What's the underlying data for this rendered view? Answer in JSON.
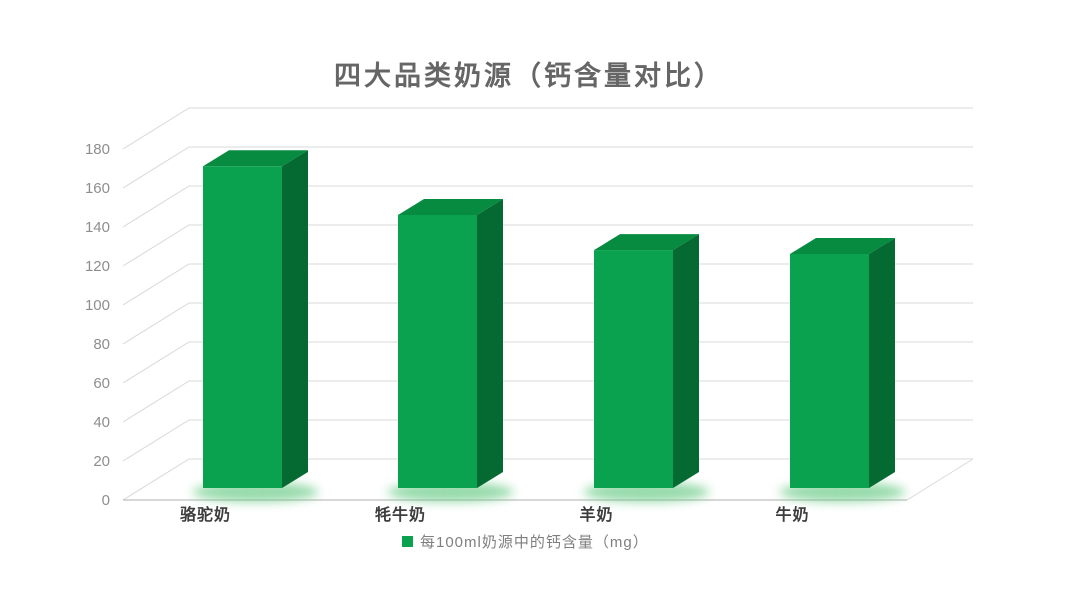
{
  "chart_data": {
    "type": "bar",
    "style": "3d-column",
    "title": "四大品类奶源（钙含量对比）",
    "categories": [
      "骆驼奶",
      "牦牛奶",
      "羊奶",
      "牛奶"
    ],
    "series": [
      {
        "name": "每100ml奶源中的钙含量（mg）",
        "values": [
          165,
          140,
          122,
          120
        ]
      }
    ],
    "xlabel": "",
    "ylabel": "",
    "ylim": [
      0,
      180
    ],
    "ytick_step": 20,
    "ytick_labels": [
      "0",
      "20",
      "40",
      "60",
      "80",
      "100",
      "120",
      "140",
      "160",
      "180"
    ],
    "grid": true,
    "legend_position": "bottom"
  },
  "colors": {
    "bar_front": "#0aa24e",
    "bar_top": "#078b41",
    "bar_side": "#046a31",
    "bar_glow": "#5ec77e",
    "gridline": "#d9d9d9",
    "axis_line": "#bfbfbf",
    "title_text": "#666666",
    "ytick_text": "#8e8e8e",
    "category_text": "#3d3d3d",
    "legend_text": "#7f7f7f"
  }
}
